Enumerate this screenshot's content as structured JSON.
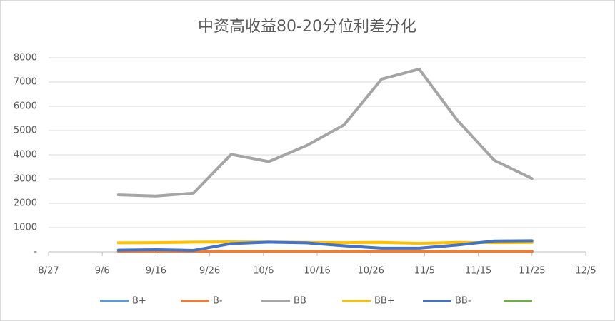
{
  "chart_data": {
    "type": "line",
    "title": "中资高收益80-20分位利差分化",
    "x": [
      "9/9",
      "9/16",
      "9/23",
      "9/30",
      "10/7",
      "10/14",
      "10/21",
      "10/28",
      "11/4",
      "11/11",
      "11/18",
      "11/25"
    ],
    "series": [
      {
        "name": "B+",
        "color": "#5b9bd5",
        "values": [
          10,
          10,
          10,
          10,
          10,
          10,
          10,
          10,
          10,
          10,
          10,
          10
        ]
      },
      {
        "name": "B-",
        "color": "#ed7d31",
        "values": [
          20,
          20,
          20,
          20,
          20,
          20,
          20,
          20,
          20,
          20,
          20,
          20
        ]
      },
      {
        "name": "BB",
        "color": "#a5a5a5",
        "values": [
          2350,
          2300,
          2420,
          4020,
          3720,
          4380,
          5230,
          7120,
          7530,
          5450,
          3770,
          3020
        ]
      },
      {
        "name": "BB+",
        "color": "#ffc000",
        "values": [
          370,
          380,
          400,
          410,
          400,
          390,
          380,
          390,
          350,
          390,
          380,
          390
        ]
      },
      {
        "name": "BB-",
        "color": "#4472c4",
        "values": [
          70,
          90,
          60,
          340,
          400,
          370,
          250,
          150,
          150,
          280,
          450,
          460
        ]
      },
      {
        "color": "#70ad47",
        "values": [
          null,
          null,
          null,
          null,
          null,
          null,
          null,
          null,
          null,
          null,
          null,
          null
        ]
      }
    ],
    "xlim": [
      "8/27",
      "12/5"
    ],
    "xticks": [
      "8/27",
      "9/6",
      "9/16",
      "9/26",
      "10/6",
      "10/16",
      "10/26",
      "11/5",
      "11/15",
      "11/25",
      "12/5"
    ],
    "ylim": [
      0,
      8000
    ],
    "yticks": [
      {
        "value": 0,
        "label": "-"
      },
      1000,
      2000,
      3000,
      4000,
      5000,
      6000,
      7000,
      8000
    ],
    "grid": true,
    "legend": "bottom"
  }
}
